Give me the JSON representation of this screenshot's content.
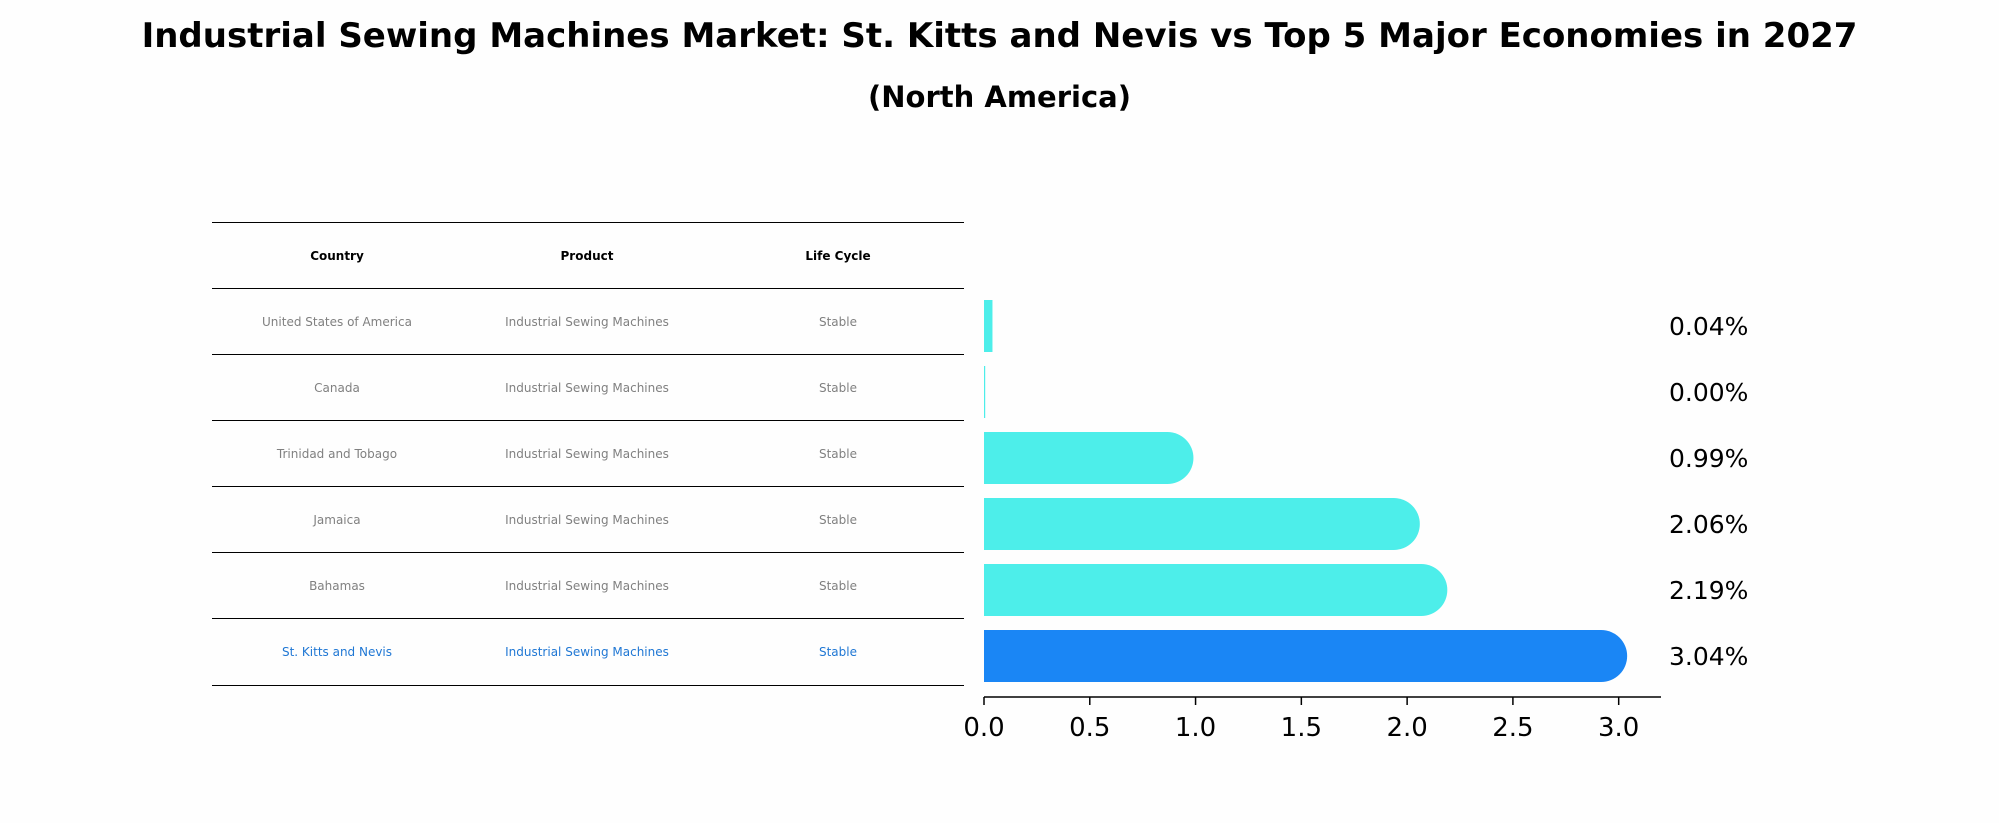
{
  "title": "Industrial Sewing Machines Market: St. Kitts and Nevis vs Top 5 Major Economies in 2027",
  "subtitle": "(North America)",
  "table": {
    "headers": [
      "Country",
      "Product",
      "Life Cycle"
    ],
    "rows": [
      {
        "country": "United States of America",
        "product": "Industrial Sewing Machines",
        "life_cycle": "Stable"
      },
      {
        "country": "Canada",
        "product": "Industrial Sewing Machines",
        "life_cycle": "Stable"
      },
      {
        "country": "Trinidad and Tobago",
        "product": "Industrial Sewing Machines",
        "life_cycle": "Stable"
      },
      {
        "country": "Jamaica",
        "product": "Industrial Sewing Machines",
        "life_cycle": "Stable"
      },
      {
        "country": "Bahamas",
        "product": "Industrial Sewing Machines",
        "life_cycle": "Stable"
      },
      {
        "country": "St. Kitts and Nevis",
        "product": "Industrial Sewing Machines",
        "life_cycle": "Stable"
      }
    ],
    "highlight_row": 5
  },
  "chart_data": {
    "type": "bar",
    "orientation": "horizontal",
    "categories": [
      "United States of America",
      "Canada",
      "Trinidad and Tobago",
      "Jamaica",
      "Bahamas",
      "St. Kitts and Nevis"
    ],
    "values": [
      0.04,
      0.0,
      0.99,
      2.06,
      2.19,
      3.04
    ],
    "labels": [
      "0.04%",
      "0.00%",
      "0.99%",
      "2.06%",
      "2.19%",
      "3.04%"
    ],
    "xlim": [
      0,
      3.2
    ],
    "xticks": [
      "0.0",
      "0.5",
      "1.0",
      "1.5",
      "2.0",
      "2.5",
      "3.0"
    ],
    "grid": false,
    "colors": {
      "default": "#4deeea",
      "highlight": "#1a86f5"
    }
  }
}
